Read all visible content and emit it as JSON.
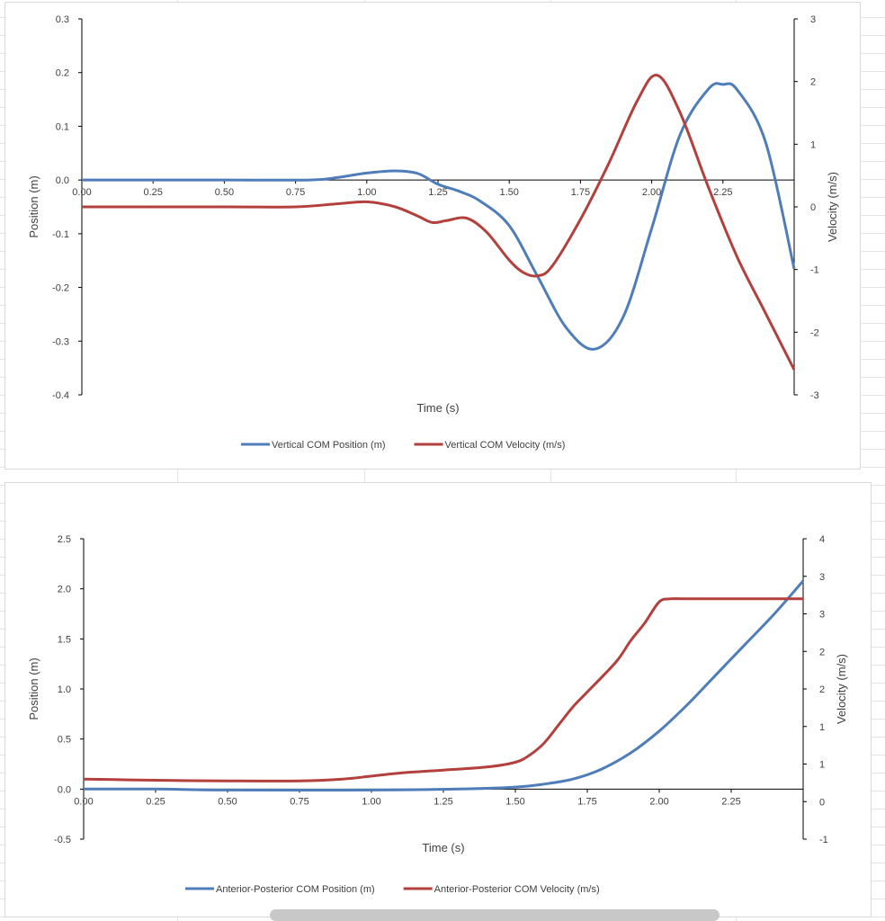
{
  "charts": [
    {
      "x_label": "Time (s)",
      "left_axis_label": "Position (m)",
      "right_axis_label": "Velocity (m/s)",
      "legend": [
        "Vertical COM Position (m)",
        "Vertical COM Velocity (m/s)"
      ]
    },
    {
      "x_label": "Time (s)",
      "left_axis_label": "Position (m)",
      "right_axis_label": "Velocity (m/s)",
      "legend": [
        "Anterior-Posterior COM Position (m)",
        "Anterior-Posterior COM Velocity (m/s)"
      ]
    }
  ],
  "chart_data": [
    {
      "type": "line",
      "xlabel": "Time (s)",
      "ylabel": "Position (m)",
      "y2label": "Velocity (m/s)",
      "xlim": [
        0,
        2.5
      ],
      "ylim": [
        -0.4,
        0.3
      ],
      "y2lim": [
        -3,
        3
      ],
      "x_ticks": [
        "0.00",
        "0.25",
        "0.50",
        "0.75",
        "1.00",
        "1.25",
        "1.50",
        "1.75",
        "2.00",
        "2.25"
      ],
      "y_ticks": [
        "0.3",
        "0.2",
        "0.1",
        "0.0",
        "-0.1",
        "-0.2",
        "-0.3",
        "-0.4"
      ],
      "y2_ticks": [
        "3",
        "2",
        "1",
        "0",
        "-1",
        "-2",
        "-3"
      ],
      "legend_position": "bottom",
      "colors": {
        "position": "#4f7dba",
        "velocity": "#b3403d"
      },
      "series": [
        {
          "name": "Vertical COM Position (m)",
          "axis": "left",
          "x": [
            0,
            0.5,
            0.8,
            0.9,
            1.0,
            1.1,
            1.18,
            1.25,
            1.33,
            1.4,
            1.5,
            1.6,
            1.7,
            1.8,
            1.9,
            2.0,
            2.1,
            2.2,
            2.25,
            2.3,
            2.4,
            2.5
          ],
          "y": [
            0,
            0,
            0,
            0.005,
            0.013,
            0.017,
            0.012,
            -0.008,
            -0.022,
            -0.04,
            -0.085,
            -0.18,
            -0.275,
            -0.315,
            -0.255,
            -0.09,
            0.085,
            0.17,
            0.178,
            0.168,
            0.07,
            -0.165
          ]
        },
        {
          "name": "Vertical COM Velocity (m/s)",
          "axis": "right",
          "x": [
            0,
            0.5,
            0.75,
            0.9,
            1.0,
            1.1,
            1.18,
            1.23,
            1.28,
            1.35,
            1.42,
            1.5,
            1.55,
            1.6,
            1.65,
            1.75,
            1.85,
            1.95,
            2.02,
            2.1,
            2.2,
            2.3,
            2.4,
            2.5
          ],
          "y": [
            0,
            0,
            0,
            0.05,
            0.08,
            0,
            -0.15,
            -0.25,
            -0.22,
            -0.18,
            -0.4,
            -0.85,
            -1.05,
            -1.1,
            -0.95,
            -0.2,
            0.7,
            1.7,
            2.1,
            1.5,
            0.3,
            -0.8,
            -1.7,
            -2.6
          ]
        }
      ]
    },
    {
      "type": "line",
      "xlabel": "Time (s)",
      "ylabel": "Position (m)",
      "y2label": "Velocity (m/s)",
      "xlim": [
        0,
        2.5
      ],
      "ylim": [
        -0.5,
        2.5
      ],
      "y2lim": [
        -1,
        4
      ],
      "x_ticks": [
        "0.00",
        "0.25",
        "0.50",
        "0.75",
        "1.00",
        "1.25",
        "1.50",
        "1.75",
        "2.00",
        "2.25"
      ],
      "y_ticks": [
        "2.5",
        "2.0",
        "1.5",
        "1.0",
        "0.5",
        "0.0",
        "-0.5"
      ],
      "y2_ticks": [
        "4",
        "3",
        "3",
        "2",
        "2",
        "1",
        "1",
        "0",
        "-1"
      ],
      "legend_position": "bottom",
      "colors": {
        "position": "#4f7dba",
        "velocity": "#b3403d"
      },
      "series": [
        {
          "name": "Anterior-Posterior COM Position (m)",
          "axis": "left",
          "x": [
            0,
            0.25,
            0.5,
            1.0,
            1.3,
            1.5,
            1.6,
            1.7,
            1.8,
            1.9,
            2.0,
            2.1,
            2.2,
            2.3,
            2.4,
            2.5
          ],
          "y": [
            0,
            0,
            -0.01,
            -0.01,
            0,
            0.02,
            0.05,
            0.1,
            0.2,
            0.36,
            0.58,
            0.85,
            1.15,
            1.45,
            1.75,
            2.08
          ]
        },
        {
          "name": "Anterior-Posterior COM Velocity (m/s)",
          "axis": "right",
          "x": [
            0,
            0.25,
            0.5,
            0.75,
            0.9,
            1.0,
            1.1,
            1.25,
            1.4,
            1.5,
            1.55,
            1.6,
            1.65,
            1.7,
            1.75,
            1.85,
            1.9,
            1.95,
            2.0,
            2.04,
            2.1,
            2.3,
            2.5
          ],
          "y": [
            0,
            -0.02,
            -0.03,
            -0.03,
            0,
            0.05,
            0.1,
            0.15,
            0.2,
            0.28,
            0.4,
            0.6,
            0.9,
            1.2,
            1.45,
            1.95,
            2.3,
            2.6,
            2.95,
            3.0,
            3.0,
            3.0,
            3.0
          ]
        }
      ]
    }
  ]
}
